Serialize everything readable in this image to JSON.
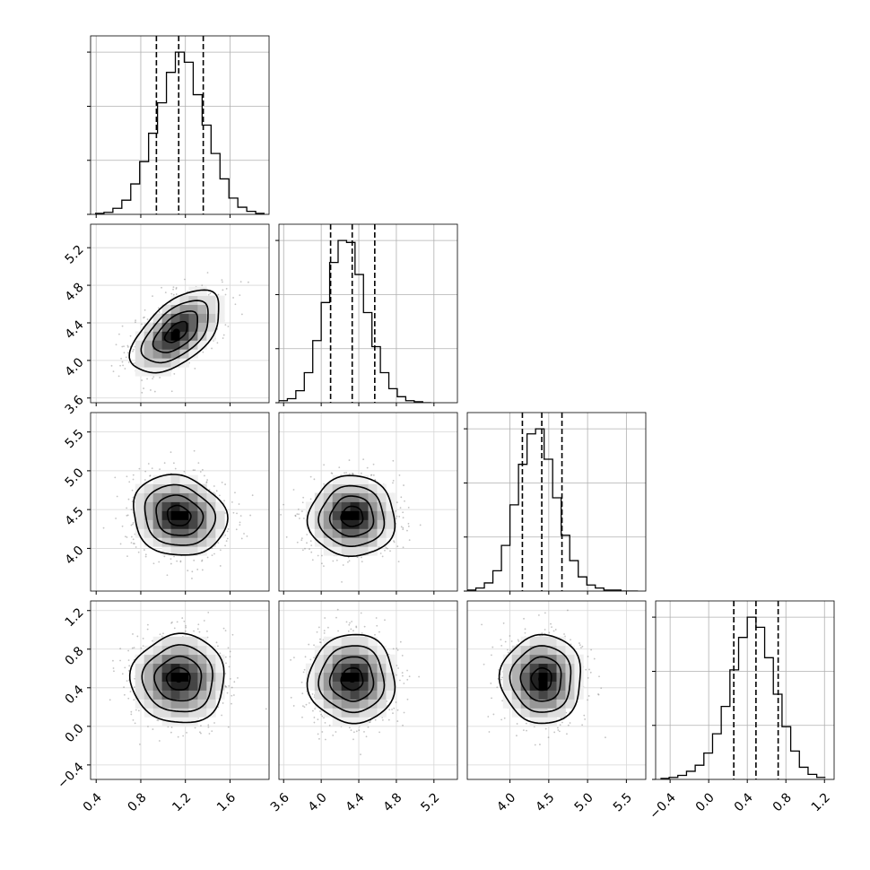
{
  "chart_data": {
    "type": "corner",
    "grid": true,
    "parameters": [
      {
        "index": 0,
        "range": [
          0.35,
          1.95
        ],
        "ticks": [
          "0.4",
          "0.8",
          "1.2",
          "1.6"
        ],
        "tick_values": [
          0.4,
          0.8,
          1.2,
          1.6
        ],
        "quantiles": [
          0.94,
          1.14,
          1.36
        ],
        "histogram": {
          "edges": [
            0.39,
            0.47,
            0.55,
            0.63,
            0.71,
            0.79,
            0.87,
            0.95,
            1.03,
            1.11,
            1.19,
            1.27,
            1.35,
            1.43,
            1.51,
            1.59,
            1.67,
            1.75,
            1.83,
            1.91
          ],
          "counts": [
            1,
            2,
            6,
            14,
            30,
            52,
            80,
            110,
            140,
            160,
            150,
            118,
            88,
            60,
            35,
            16,
            7,
            3,
            1
          ]
        }
      },
      {
        "index": 1,
        "range": [
          3.55,
          5.45
        ],
        "ticks": [
          "3.6",
          "4.0",
          "4.4",
          "4.8",
          "5.2"
        ],
        "tick_values": [
          3.6,
          4.0,
          4.4,
          4.8,
          5.2
        ],
        "quantiles": [
          4.1,
          4.33,
          4.57
        ],
        "histogram": {
          "edges": [
            3.55,
            3.64,
            3.73,
            3.82,
            3.91,
            4.0,
            4.09,
            4.18,
            4.27,
            4.36,
            4.45,
            4.54,
            4.63,
            4.72,
            4.81,
            4.9,
            4.99,
            5.08,
            5.17
          ],
          "counts": [
            2,
            4,
            12,
            30,
            62,
            100,
            140,
            162,
            160,
            128,
            90,
            56,
            30,
            14,
            6,
            2,
            1,
            0
          ]
        }
      },
      {
        "index": 2,
        "range": [
          3.45,
          5.75
        ],
        "ticks": [
          "4.0",
          "4.5",
          "5.0",
          "5.5"
        ],
        "tick_values": [
          4.0,
          4.5,
          5.0,
          5.5
        ],
        "quantiles": [
          4.16,
          4.41,
          4.67
        ],
        "histogram": {
          "edges": [
            3.45,
            3.56,
            3.67,
            3.78,
            3.89,
            4.0,
            4.11,
            4.22,
            4.33,
            4.44,
            4.55,
            4.66,
            4.77,
            4.88,
            4.99,
            5.1,
            5.21,
            5.32,
            5.43,
            5.54,
            5.65
          ],
          "counts": [
            1,
            3,
            8,
            20,
            45,
            85,
            125,
            155,
            160,
            130,
            92,
            55,
            30,
            14,
            6,
            3,
            1,
            1,
            0,
            0
          ]
        }
      },
      {
        "index": 3,
        "range": [
          -0.55,
          1.3
        ],
        "ticks": [
          "−0.4",
          "0.0",
          "0.4",
          "0.8",
          "1.2"
        ],
        "tick_values": [
          -0.4,
          0.0,
          0.4,
          0.8,
          1.2
        ],
        "quantiles": [
          0.26,
          0.49,
          0.72
        ],
        "histogram": {
          "edges": [
            -0.5,
            -0.41,
            -0.32,
            -0.23,
            -0.14,
            -0.05,
            0.04,
            0.13,
            0.22,
            0.31,
            0.4,
            0.49,
            0.58,
            0.67,
            0.76,
            0.85,
            0.94,
            1.03,
            1.12,
            1.21
          ],
          "counts": [
            1,
            2,
            4,
            8,
            14,
            26,
            45,
            72,
            108,
            140,
            160,
            150,
            120,
            84,
            52,
            28,
            12,
            5,
            2
          ]
        }
      }
    ],
    "pairs": [
      {
        "x": 0,
        "y": 1,
        "center": [
          1.12,
          4.3
        ],
        "sigma": [
          0.2,
          0.22
        ],
        "rho": 0.55,
        "ellipse_scales": [
          0.5,
          1.0,
          1.5,
          2.0
        ],
        "points": 900
      },
      {
        "x": 0,
        "y": 2,
        "center": [
          1.14,
          4.42
        ],
        "sigma": [
          0.21,
          0.26
        ],
        "rho": -0.12,
        "ellipse_scales": [
          0.5,
          1.0,
          1.5,
          2.0
        ],
        "points": 900
      },
      {
        "x": 1,
        "y": 2,
        "center": [
          4.33,
          4.41
        ],
        "sigma": [
          0.23,
          0.26
        ],
        "rho": 0.0,
        "ellipse_scales": [
          0.5,
          1.0,
          1.5,
          2.0
        ],
        "points": 900
      },
      {
        "x": 0,
        "y": 3,
        "center": [
          1.14,
          0.49
        ],
        "sigma": [
          0.21,
          0.23
        ],
        "rho": 0.0,
        "ellipse_scales": [
          0.5,
          1.0,
          1.5,
          2.0
        ],
        "points": 900
      },
      {
        "x": 1,
        "y": 3,
        "center": [
          4.33,
          0.49
        ],
        "sigma": [
          0.23,
          0.23
        ],
        "rho": 0.0,
        "ellipse_scales": [
          0.5,
          1.0,
          1.5,
          2.0
        ],
        "points": 900
      },
      {
        "x": 2,
        "y": 3,
        "center": [
          4.41,
          0.49
        ],
        "sigma": [
          0.26,
          0.23
        ],
        "rho": 0.0,
        "ellipse_scales": [
          0.5,
          1.0,
          1.5,
          2.0
        ],
        "points": 900
      }
    ]
  }
}
